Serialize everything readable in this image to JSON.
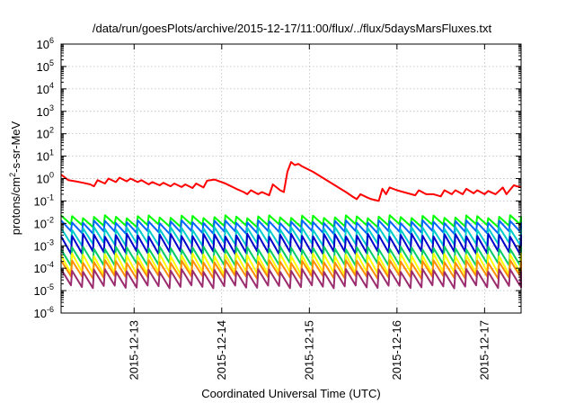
{
  "chart_data": {
    "type": "line",
    "title": "/data/run/goesPlots/archive/2015-12-17/11:00/flux/../flux/5daysMarsFluxes.txt",
    "xlabel": "Coordinated Universal Time (UTC)",
    "ylabel_main": "protons/cm",
    "ylabel_sup": "2",
    "ylabel_tail": "-s-sr-MeV",
    "ylog": true,
    "grid": true,
    "xlim": [
      "2015-12-12T04:00",
      "2015-12-17T10:00"
    ],
    "ylim": [
      1e-06,
      1000000.0
    ],
    "x_ticks": [
      {
        "value": "2015-12-13T00:00",
        "label": "2015-12-13"
      },
      {
        "value": "2015-12-14T00:00",
        "label": "2015-12-14"
      },
      {
        "value": "2015-12-15T00:00",
        "label": "2015-12-15"
      },
      {
        "value": "2015-12-16T00:00",
        "label": "2015-12-16"
      },
      {
        "value": "2015-12-17T00:00",
        "label": "2015-12-17"
      }
    ],
    "y_ticks": [
      {
        "exp": -6,
        "base": "10",
        "sup": "-6"
      },
      {
        "exp": -5,
        "base": "10",
        "sup": "-5"
      },
      {
        "exp": -4,
        "base": "10",
        "sup": "-4"
      },
      {
        "exp": -3,
        "base": "10",
        "sup": "-3"
      },
      {
        "exp": -2,
        "base": "10",
        "sup": "-2"
      },
      {
        "exp": -1,
        "base": "10",
        "sup": "-1"
      },
      {
        "exp": 0,
        "base": "10",
        "sup": "0"
      },
      {
        "exp": 1,
        "base": "10",
        "sup": "1"
      },
      {
        "exp": 2,
        "base": "10",
        "sup": "2"
      },
      {
        "exp": 3,
        "base": "10",
        "sup": "3"
      },
      {
        "exp": 4,
        "base": "10",
        "sup": "4"
      },
      {
        "exp": 5,
        "base": "10",
        "sup": "5"
      },
      {
        "exp": 6,
        "base": "10",
        "sup": "6"
      }
    ],
    "series": [
      {
        "color": "#ff0000",
        "points": [
          [
            "2015-12-12T04:00",
            1.5
          ],
          [
            "2015-12-12T06:00",
            0.85
          ],
          [
            "2015-12-12T08:00",
            0.75
          ],
          [
            "2015-12-12T10:00",
            0.65
          ],
          [
            "2015-12-12T12:00",
            0.55
          ],
          [
            "2015-12-12T13:00",
            0.45
          ],
          [
            "2015-12-12T14:00",
            0.85
          ],
          [
            "2015-12-12T16:00",
            0.6
          ],
          [
            "2015-12-12T17:00",
            1.0
          ],
          [
            "2015-12-12T19:00",
            0.7
          ],
          [
            "2015-12-12T20:00",
            1.1
          ],
          [
            "2015-12-12T22:00",
            0.75
          ],
          [
            "2015-12-12T23:00",
            1.0
          ],
          [
            "2015-12-13T01:00",
            0.7
          ],
          [
            "2015-12-13T02:00",
            0.85
          ],
          [
            "2015-12-13T04:00",
            0.55
          ],
          [
            "2015-12-13T05:00",
            0.7
          ],
          [
            "2015-12-13T07:00",
            0.5
          ],
          [
            "2015-12-13T08:00",
            0.65
          ],
          [
            "2015-12-13T10:00",
            0.45
          ],
          [
            "2015-12-13T11:00",
            0.6
          ],
          [
            "2015-12-13T13:00",
            0.42
          ],
          [
            "2015-12-13T14:00",
            0.55
          ],
          [
            "2015-12-13T16:00",
            0.38
          ],
          [
            "2015-12-13T17:00",
            0.6
          ],
          [
            "2015-12-13T19:00",
            0.4
          ],
          [
            "2015-12-13T20:00",
            0.8
          ],
          [
            "2015-12-13T22:00",
            0.9
          ],
          [
            "2015-12-14T01:00",
            0.6
          ],
          [
            "2015-12-14T04:00",
            0.35
          ],
          [
            "2015-12-14T06:00",
            0.25
          ],
          [
            "2015-12-14T07:00",
            0.2
          ],
          [
            "2015-12-14T08:00",
            0.3
          ],
          [
            "2015-12-14T10:00",
            0.2
          ],
          [
            "2015-12-14T11:00",
            0.25
          ],
          [
            "2015-12-14T13:00",
            0.18
          ],
          [
            "2015-12-14T14:00",
            0.55
          ],
          [
            "2015-12-14T16:00",
            0.3
          ],
          [
            "2015-12-14T17:00",
            0.25
          ],
          [
            "2015-12-14T18:00",
            2.0
          ],
          [
            "2015-12-14T19:00",
            5.5
          ],
          [
            "2015-12-14T20:00",
            4.0
          ],
          [
            "2015-12-14T21:00",
            4.5
          ],
          [
            "2015-12-14T22:00",
            3.5
          ],
          [
            "2015-12-15T01:00",
            2.0
          ],
          [
            "2015-12-15T04:00",
            1.0
          ],
          [
            "2015-12-15T07:00",
            0.5
          ],
          [
            "2015-12-15T10:00",
            0.25
          ],
          [
            "2015-12-15T12:00",
            0.15
          ],
          [
            "2015-12-15T13:00",
            0.12
          ],
          [
            "2015-12-15T14:00",
            0.2
          ],
          [
            "2015-12-15T16:00",
            0.14
          ],
          [
            "2015-12-15T17:00",
            0.12
          ],
          [
            "2015-12-15T19:00",
            0.1
          ],
          [
            "2015-12-15T20:00",
            0.35
          ],
          [
            "2015-12-15T21:00",
            0.2
          ],
          [
            "2015-12-15T22:00",
            0.4
          ],
          [
            "2015-12-16T00:00",
            0.3
          ],
          [
            "2015-12-16T03:00",
            0.22
          ],
          [
            "2015-12-16T05:00",
            0.18
          ],
          [
            "2015-12-16T06:00",
            0.3
          ],
          [
            "2015-12-16T08:00",
            0.2
          ],
          [
            "2015-12-16T10:00",
            0.2
          ],
          [
            "2015-12-16T12:00",
            0.16
          ],
          [
            "2015-12-16T13:00",
            0.3
          ],
          [
            "2015-12-16T15:00",
            0.2
          ],
          [
            "2015-12-16T16:00",
            0.3
          ],
          [
            "2015-12-16T18:00",
            0.2
          ],
          [
            "2015-12-16T19:00",
            0.35
          ],
          [
            "2015-12-16T21:00",
            0.22
          ],
          [
            "2015-12-16T22:00",
            0.3
          ],
          [
            "2015-12-17T00:00",
            0.2
          ],
          [
            "2015-12-17T01:00",
            0.28
          ],
          [
            "2015-12-17T03:00",
            0.2
          ],
          [
            "2015-12-17T05:00",
            0.4
          ],
          [
            "2015-12-17T06:00",
            0.2
          ],
          [
            "2015-12-17T08:00",
            0.5
          ],
          [
            "2015-12-17T10:00",
            0.4
          ]
        ]
      },
      {
        "color": "#00ff00",
        "sawtooth": {
          "period_hours": 3,
          "high": 0.02,
          "low": 0.008
        }
      },
      {
        "color": "#0066ff",
        "sawtooth": {
          "period_hours": 3,
          "high": 0.012,
          "low": 0.004
        }
      },
      {
        "color": "#00cccc",
        "sawtooth": {
          "period_hours": 3,
          "high": 0.006,
          "low": 0.0012
        }
      },
      {
        "color": "#0000cc",
        "sawtooth": {
          "period_hours": 3,
          "high": 0.003,
          "low": 0.0005
        }
      },
      {
        "color": "#00cc66",
        "sawtooth": {
          "period_hours": 3,
          "high": 0.0008,
          "low": 0.00015
        }
      },
      {
        "color": "#ffff00",
        "sawtooth": {
          "period_hours": 3,
          "high": 0.0004,
          "low": 6e-05
        }
      },
      {
        "color": "#ff8c00",
        "sawtooth": {
          "period_hours": 3,
          "high": 0.0002,
          "low": 4e-05
        }
      },
      {
        "color": "#9b2d6e",
        "sawtooth": {
          "period_hours": 3,
          "high": 8e-05,
          "low": 1.5e-05
        }
      }
    ]
  }
}
